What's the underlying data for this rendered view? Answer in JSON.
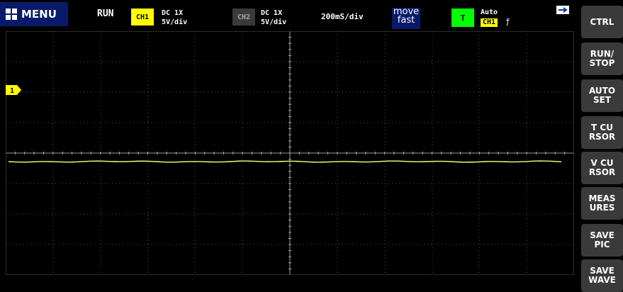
{
  "header": {
    "menu_label": "MENU",
    "run_state": "RUN",
    "ch1": {
      "label": "CH1",
      "coupling": "DC  1X",
      "scale": "5V/div",
      "color": "#ffff00"
    },
    "ch2": {
      "label": "CH2",
      "coupling": "DC  1X",
      "scale": "5V/div"
    },
    "timebase": "200mS/div",
    "move": {
      "line1": "move",
      "line2": "fast"
    },
    "trigger": {
      "label": "T",
      "mode": "Auto",
      "source": "CH1",
      "edge": "ƒ",
      "color": "#00ff00"
    }
  },
  "scope": {
    "channel_marker": "1",
    "grid": {
      "divisions_x": 12,
      "divisions_y": 8
    }
  },
  "sidebar": {
    "buttons": [
      {
        "line1": "CTRL",
        "line2": ""
      },
      {
        "line1": "RUN/",
        "line2": "STOP"
      },
      {
        "line1": "AUTO",
        "line2": "SET"
      },
      {
        "line1": "T  CU",
        "line2": "RSOR"
      },
      {
        "line1": "V  CU",
        "line2": "RSOR"
      },
      {
        "line1": "MEAS",
        "line2": "URES"
      },
      {
        "line1": "SAVE",
        "line2": "PIC"
      },
      {
        "line1": "SAVE",
        "line2": "WAVE"
      }
    ]
  }
}
